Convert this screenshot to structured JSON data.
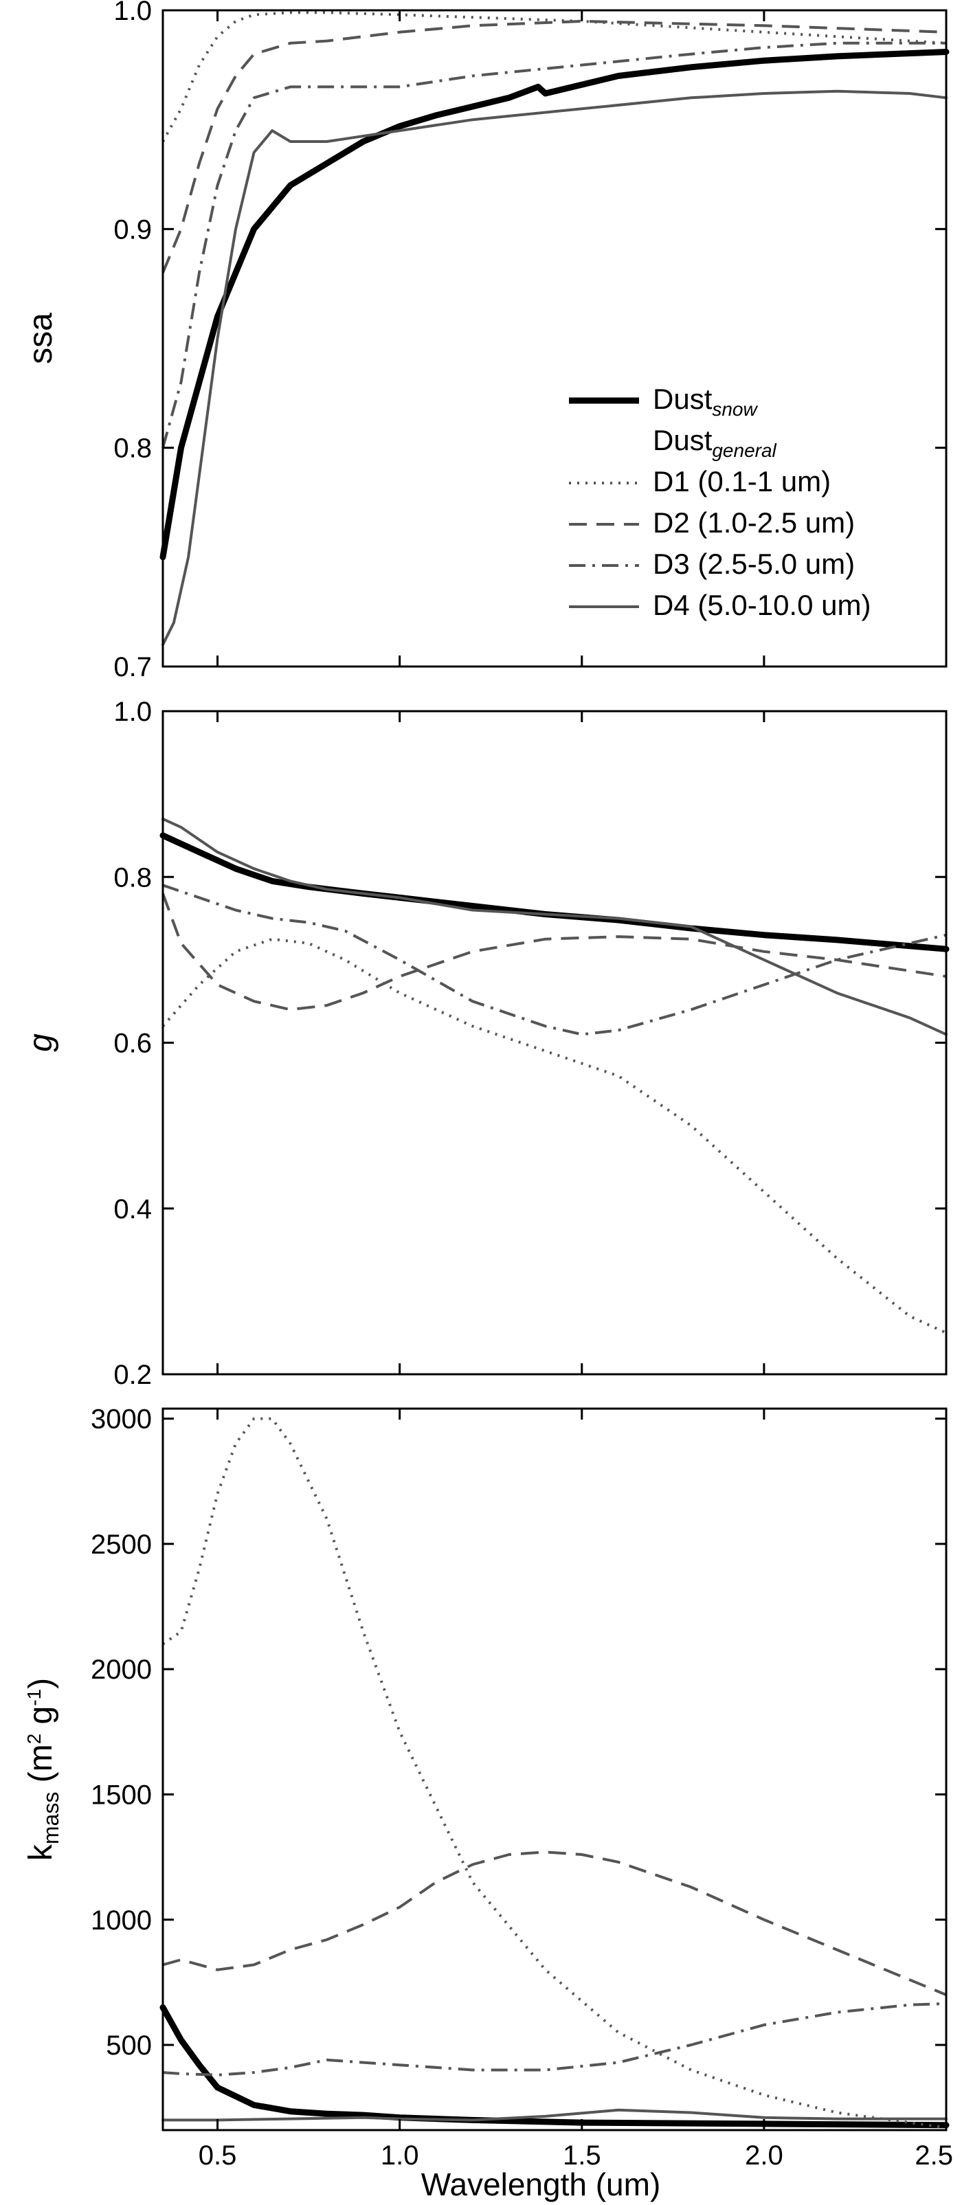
{
  "chart_data": [
    {
      "type": "line",
      "title": "",
      "xlabel": "",
      "ylabel": "ssa",
      "xlim": [
        0.35,
        2.5
      ],
      "ylim": [
        0.7,
        1.0
      ],
      "xticks": [
        0.5,
        1.0,
        1.5,
        2.0,
        2.5
      ],
      "xtick_labels": [],
      "yticks": [
        0.7,
        0.8,
        0.9,
        1.0
      ],
      "ytick_labels": [
        "0.7",
        "0.8",
        "0.9",
        "1.0"
      ],
      "legend": {
        "position": "lower-right",
        "entries": [
          {
            "label": "Dust",
            "sub": "snow",
            "style": "thick"
          },
          {
            "label": "Dust",
            "sub": "general",
            "style": "none"
          },
          {
            "label": "D1 (0.1-1 um)",
            "style": "dotted"
          },
          {
            "label": "D2 (1.0-2.5 um)",
            "style": "dashed"
          },
          {
            "label": "D3 (2.5-5.0 um)",
            "style": "dashdot"
          },
          {
            "label": "D4 (5.0-10.0 um)",
            "style": "solid"
          }
        ]
      },
      "series": [
        {
          "style": "thick",
          "x": [
            0.35,
            0.4,
            0.45,
            0.5,
            0.55,
            0.6,
            0.7,
            0.8,
            0.9,
            1.0,
            1.1,
            1.2,
            1.3,
            1.38,
            1.4,
            1.5,
            1.6,
            1.8,
            2.0,
            2.2,
            2.5
          ],
          "y": [
            0.75,
            0.8,
            0.83,
            0.86,
            0.88,
            0.9,
            0.92,
            0.93,
            0.94,
            0.947,
            0.952,
            0.956,
            0.96,
            0.965,
            0.962,
            0.966,
            0.97,
            0.974,
            0.977,
            0.979,
            0.981
          ]
        },
        {
          "style": "dotted",
          "x": [
            0.35,
            0.4,
            0.45,
            0.5,
            0.55,
            0.6,
            0.7,
            0.8,
            1.0,
            1.5,
            2.0,
            2.5
          ],
          "y": [
            0.94,
            0.955,
            0.975,
            0.988,
            0.995,
            0.998,
            0.999,
            0.999,
            0.998,
            0.995,
            0.99,
            0.985
          ]
        },
        {
          "style": "dashed",
          "x": [
            0.35,
            0.4,
            0.45,
            0.5,
            0.55,
            0.6,
            0.7,
            0.8,
            1.0,
            1.2,
            1.5,
            2.0,
            2.5
          ],
          "y": [
            0.88,
            0.9,
            0.93,
            0.955,
            0.97,
            0.98,
            0.985,
            0.986,
            0.99,
            0.993,
            0.995,
            0.993,
            0.99
          ]
        },
        {
          "style": "dashdot",
          "x": [
            0.35,
            0.4,
            0.45,
            0.5,
            0.55,
            0.6,
            0.7,
            0.8,
            1.0,
            1.2,
            1.5,
            1.8,
            2.0,
            2.2,
            2.5
          ],
          "y": [
            0.8,
            0.83,
            0.88,
            0.92,
            0.945,
            0.96,
            0.965,
            0.965,
            0.965,
            0.97,
            0.975,
            0.98,
            0.983,
            0.985,
            0.985
          ]
        },
        {
          "style": "solid",
          "x": [
            0.35,
            0.38,
            0.42,
            0.46,
            0.5,
            0.55,
            0.6,
            0.65,
            0.7,
            0.8,
            1.0,
            1.2,
            1.5,
            1.8,
            2.0,
            2.2,
            2.4,
            2.5
          ],
          "y": [
            0.71,
            0.72,
            0.75,
            0.8,
            0.85,
            0.9,
            0.935,
            0.945,
            0.94,
            0.94,
            0.945,
            0.95,
            0.955,
            0.96,
            0.962,
            0.963,
            0.962,
            0.96
          ]
        }
      ]
    },
    {
      "type": "line",
      "title": "",
      "xlabel": "",
      "ylabel": "g",
      "xlim": [
        0.35,
        2.5
      ],
      "ylim": [
        0.2,
        1.0
      ],
      "xticks": [
        0.5,
        1.0,
        1.5,
        2.0,
        2.5
      ],
      "xtick_labels": [],
      "yticks": [
        0.2,
        0.4,
        0.6,
        0.8,
        1.0
      ],
      "ytick_labels": [
        "0.2",
        "0.4",
        "0.6",
        "0.8",
        "1.0"
      ],
      "series": [
        {
          "style": "thick",
          "x": [
            0.35,
            0.45,
            0.55,
            0.65,
            0.75,
            0.9,
            1.0,
            1.2,
            1.4,
            1.6,
            1.8,
            2.0,
            2.2,
            2.5
          ],
          "y": [
            0.85,
            0.83,
            0.81,
            0.795,
            0.788,
            0.78,
            0.775,
            0.765,
            0.755,
            0.748,
            0.738,
            0.73,
            0.724,
            0.713
          ]
        },
        {
          "style": "dotted",
          "x": [
            0.35,
            0.45,
            0.55,
            0.65,
            0.75,
            0.85,
            1.0,
            1.2,
            1.4,
            1.6,
            1.8,
            2.0,
            2.2,
            2.4,
            2.5
          ],
          "y": [
            0.62,
            0.67,
            0.71,
            0.725,
            0.72,
            0.7,
            0.66,
            0.62,
            0.59,
            0.56,
            0.5,
            0.42,
            0.34,
            0.27,
            0.25
          ]
        },
        {
          "style": "dashed",
          "x": [
            0.35,
            0.4,
            0.5,
            0.6,
            0.7,
            0.8,
            0.9,
            1.0,
            1.2,
            1.4,
            1.6,
            1.8,
            2.0,
            2.2,
            2.5
          ],
          "y": [
            0.78,
            0.72,
            0.67,
            0.65,
            0.64,
            0.645,
            0.66,
            0.68,
            0.71,
            0.725,
            0.728,
            0.725,
            0.71,
            0.7,
            0.68
          ]
        },
        {
          "style": "dashdot",
          "x": [
            0.35,
            0.45,
            0.55,
            0.65,
            0.75,
            0.85,
            1.0,
            1.2,
            1.4,
            1.5,
            1.6,
            1.8,
            2.0,
            2.2,
            2.5
          ],
          "y": [
            0.79,
            0.775,
            0.76,
            0.75,
            0.745,
            0.735,
            0.7,
            0.65,
            0.62,
            0.61,
            0.615,
            0.64,
            0.67,
            0.7,
            0.73
          ]
        },
        {
          "style": "solid",
          "x": [
            0.35,
            0.4,
            0.5,
            0.6,
            0.7,
            0.8,
            0.9,
            1.0,
            1.2,
            1.4,
            1.6,
            1.8,
            2.0,
            2.2,
            2.4,
            2.5
          ],
          "y": [
            0.87,
            0.86,
            0.83,
            0.81,
            0.795,
            0.785,
            0.78,
            0.775,
            0.76,
            0.755,
            0.75,
            0.74,
            0.7,
            0.66,
            0.63,
            0.61
          ]
        }
      ]
    },
    {
      "type": "line",
      "title": "",
      "xlabel": "Wavelength (um)",
      "ylabel": "k_mass (m^2 g^-1)",
      "ylabel_parts": {
        "base": "k",
        "sub": "mass",
        "unit_open": "(m",
        "unit_sup1": "2",
        "unit_mid": " g",
        "unit_sup2": "-1",
        "unit_close": ")"
      },
      "xlim": [
        0.35,
        2.5
      ],
      "ylim": [
        160,
        3040
      ],
      "xticks": [
        0.5,
        1.0,
        1.5,
        2.0,
        2.5
      ],
      "xtick_labels": [
        "0.5",
        "1.0",
        "1.5",
        "2.0",
        "2.5"
      ],
      "yticks": [
        500,
        1000,
        1500,
        2000,
        2500,
        3000
      ],
      "ytick_labels": [
        "500",
        "1000",
        "1500",
        "2000",
        "2500",
        "3000"
      ],
      "series": [
        {
          "style": "thick",
          "x": [
            0.35,
            0.4,
            0.45,
            0.5,
            0.6,
            0.7,
            0.8,
            0.9,
            1.0,
            1.2,
            1.5,
            2.0,
            2.5
          ],
          "y": [
            650,
            520,
            420,
            330,
            260,
            235,
            225,
            220,
            210,
            200,
            190,
            185,
            180
          ]
        },
        {
          "style": "dotted",
          "x": [
            0.35,
            0.4,
            0.45,
            0.5,
            0.55,
            0.6,
            0.65,
            0.7,
            0.8,
            0.9,
            1.0,
            1.1,
            1.2,
            1.4,
            1.6,
            1.8,
            2.0,
            2.2,
            2.4,
            2.5
          ],
          "y": [
            2100,
            2150,
            2400,
            2700,
            2900,
            3000,
            3000,
            2900,
            2600,
            2150,
            1750,
            1450,
            1150,
            800,
            550,
            400,
            300,
            230,
            190,
            170
          ]
        },
        {
          "style": "dashed",
          "x": [
            0.35,
            0.4,
            0.5,
            0.6,
            0.7,
            0.8,
            0.9,
            1.0,
            1.1,
            1.2,
            1.3,
            1.4,
            1.5,
            1.6,
            1.8,
            2.0,
            2.2,
            2.4,
            2.5
          ],
          "y": [
            820,
            840,
            800,
            820,
            880,
            920,
            980,
            1050,
            1150,
            1220,
            1260,
            1270,
            1260,
            1230,
            1130,
            1000,
            880,
            760,
            700
          ]
        },
        {
          "style": "dashdot",
          "x": [
            0.35,
            0.4,
            0.5,
            0.6,
            0.7,
            0.8,
            0.9,
            1.0,
            1.2,
            1.4,
            1.6,
            1.8,
            2.0,
            2.2,
            2.4,
            2.5
          ],
          "y": [
            390,
            385,
            380,
            390,
            410,
            440,
            430,
            420,
            400,
            400,
            430,
            500,
            580,
            630,
            660,
            665
          ]
        },
        {
          "style": "solid",
          "x": [
            0.35,
            0.5,
            0.7,
            0.9,
            1.0,
            1.2,
            1.4,
            1.6,
            1.8,
            2.0,
            2.2,
            2.5
          ],
          "y": [
            200,
            200,
            205,
            210,
            205,
            200,
            215,
            240,
            230,
            210,
            205,
            205
          ]
        }
      ]
    }
  ]
}
